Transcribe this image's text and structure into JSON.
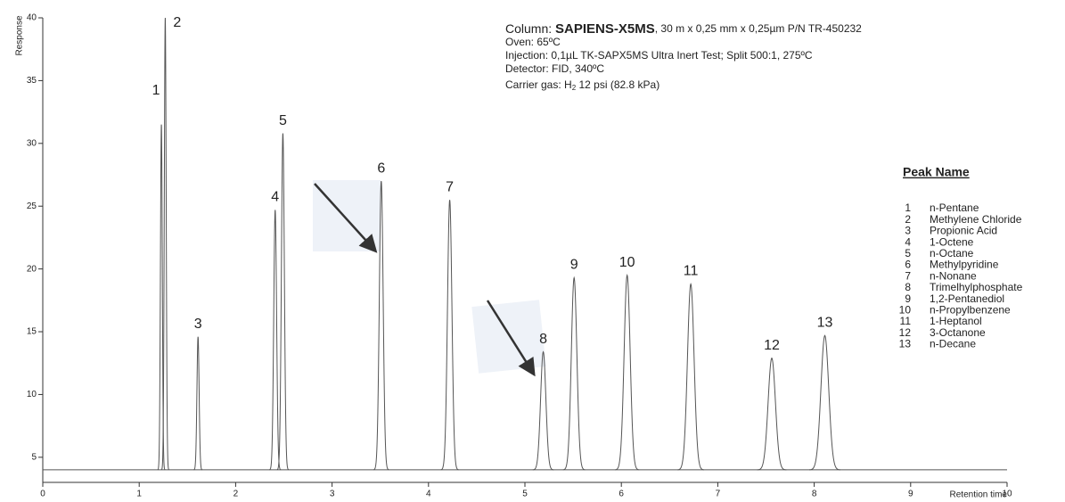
{
  "chart_data": {
    "type": "chromatogram",
    "ylabel": "Response",
    "xlabel": "Retention time",
    "xlim": [
      0,
      10
    ],
    "xticks": [
      0,
      1,
      2,
      3,
      4,
      5,
      6,
      7,
      8,
      9,
      10
    ],
    "ylim": [
      3,
      40
    ],
    "yticks": [
      5,
      10,
      15,
      20,
      25,
      30,
      35,
      40
    ],
    "baseline": 4,
    "color": "#555555",
    "peaks": {
      "labels": [
        "1",
        "2",
        "3",
        "4",
        "5",
        "6",
        "7",
        "8",
        "9",
        "10",
        "11",
        "12",
        "13"
      ],
      "x": [
        1.23,
        1.27,
        1.61,
        2.41,
        2.49,
        3.51,
        4.22,
        5.19,
        5.51,
        6.06,
        6.72,
        7.56,
        8.11
      ],
      "values": [
        31.5,
        40,
        14.6,
        24.7,
        30.8,
        27,
        25.5,
        13.4,
        19.3,
        19.5,
        18.8,
        12.9,
        14.7
      ]
    },
    "info": {
      "column_prefix": "Column: ",
      "column_name": "SAPIENS-X5MS",
      "column_rest": ", 30 m x 0,25 mm x 0,25µm P/N TR-450232",
      "oven": "Oven: 65ºC",
      "injection": "Injection: 0,1µL TK-SAPX5MS Ultra Inert Test; Split 500:1, 275ºC",
      "detector": "Detector: FID, 340ºC",
      "carrier_prefix": "Carrier gas: H",
      "carrier_sub": "2",
      "carrier_rest": " 12 psi (82.8 kPa)"
    },
    "legend": {
      "title": "Peak Name",
      "numbers": [
        "1",
        "2",
        "3",
        "4",
        "5",
        "6",
        "7",
        "8",
        "9",
        "10",
        "11",
        "12",
        "13"
      ],
      "names": [
        "n-Pentane",
        "Methylene Chloride",
        "Propionic Acid",
        "1-Octene",
        "n-Octane",
        "Methylpyridine",
        "n-Nonane",
        "Trimelhylphosphate",
        "1,2-Pentanediol",
        "n-Propylbenzene",
        "1-Heptanol",
        "3-Octanone",
        "n-Decane"
      ]
    }
  }
}
